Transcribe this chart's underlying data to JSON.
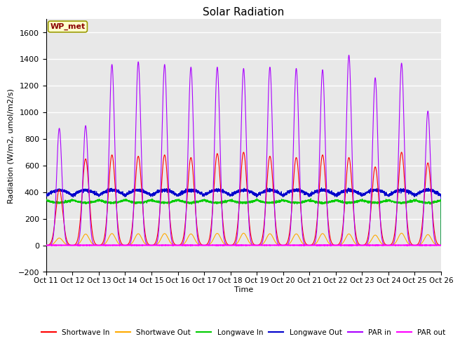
{
  "title": "Solar Radiation",
  "ylabel": "Radiation (W/m2, umol/m2/s)",
  "xlabel": "Time",
  "ylim": [
    -200,
    1700
  ],
  "yticks": [
    -200,
    0,
    200,
    400,
    600,
    800,
    1000,
    1200,
    1400,
    1600
  ],
  "x_tick_labels": [
    "Oct 11",
    "Oct 12",
    "Oct 13",
    "Oct 14",
    "Oct 15",
    "Oct 16",
    "Oct 17",
    "Oct 18",
    "Oct 19",
    "Oct 20",
    "Oct 21",
    "Oct 22",
    "Oct 23",
    "Oct 24",
    "Oct 25",
    "Oct 26"
  ],
  "legend_labels": [
    "Shortwave In",
    "Shortwave Out",
    "Longwave In",
    "Longwave Out",
    "PAR in",
    "PAR out"
  ],
  "legend_colors": [
    "#ff0000",
    "#ffaa00",
    "#00cc00",
    "#0000cc",
    "#aa00ff",
    "#ff00ff"
  ],
  "station_label": "WP_met",
  "bg_color": "#e8e8e8",
  "grid_color": "#ffffff",
  "n_days": 15,
  "points_per_day": 288
}
